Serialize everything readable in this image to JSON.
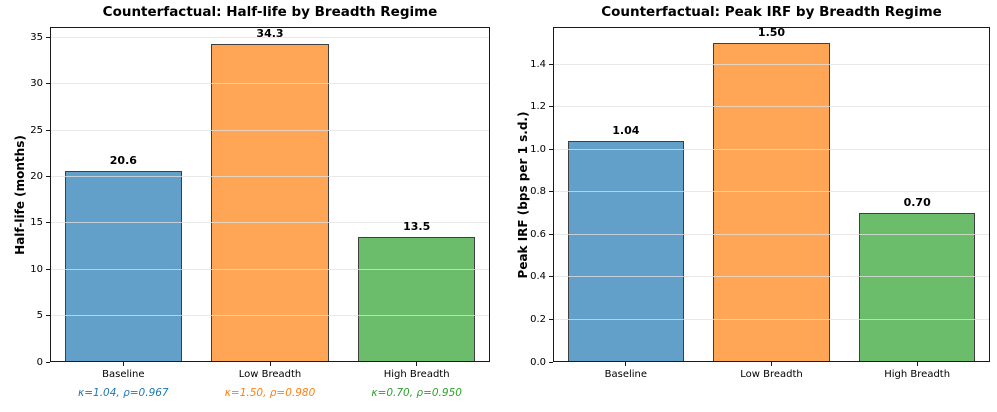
{
  "figure": {
    "background": "#ffffff",
    "text_color": "#000000"
  },
  "chart_data": [
    {
      "type": "bar",
      "title": "Counterfactual: Half-life by Breadth Regime",
      "xlabel": "",
      "ylabel": "Half-life (months)",
      "categories": [
        "Baseline",
        "Low Breadth",
        "High Breadth"
      ],
      "values": [
        20.6,
        34.3,
        13.5
      ],
      "value_labels": [
        "20.6",
        "34.3",
        "13.5"
      ],
      "bar_colors": [
        "#62a0ca",
        "#ffa556",
        "#6bbc6b"
      ],
      "bar_edge_color": "#3f3f3f",
      "category_sublabels": [
        "κ=1.04, ρ=0.967",
        "κ=1.50, ρ=0.980",
        "κ=0.70, ρ=0.950"
      ],
      "sublabel_colors": [
        "#1f77b4",
        "#ff7f0e",
        "#2ca02c"
      ],
      "ylim": [
        0,
        36.15
      ],
      "yticks": [
        0,
        5,
        10,
        15,
        20,
        25,
        30,
        35
      ],
      "ytick_labels": [
        "0",
        "5",
        "10",
        "15",
        "20",
        "25",
        "30",
        "35"
      ],
      "grid": "horizontal",
      "legend": "none"
    },
    {
      "type": "bar",
      "title": "Counterfactual: Peak IRF by Breadth Regime",
      "xlabel": "",
      "ylabel": "Peak IRF (bps per 1 s.d.)",
      "categories": [
        "Baseline",
        "Low Breadth",
        "High Breadth"
      ],
      "values": [
        1.04,
        1.5,
        0.7
      ],
      "value_labels": [
        "1.04",
        "1.50",
        "0.70"
      ],
      "bar_colors": [
        "#62a0ca",
        "#ffa556",
        "#6bbc6b"
      ],
      "bar_edge_color": "#3f3f3f",
      "ylim": [
        0,
        1.575
      ],
      "yticks": [
        0.0,
        0.2,
        0.4,
        0.6,
        0.8,
        1.0,
        1.2,
        1.4
      ],
      "ytick_labels": [
        "0.0",
        "0.2",
        "0.4",
        "0.6",
        "0.8",
        "1.0",
        "1.2",
        "1.4"
      ],
      "grid": "horizontal",
      "legend": "none"
    }
  ]
}
